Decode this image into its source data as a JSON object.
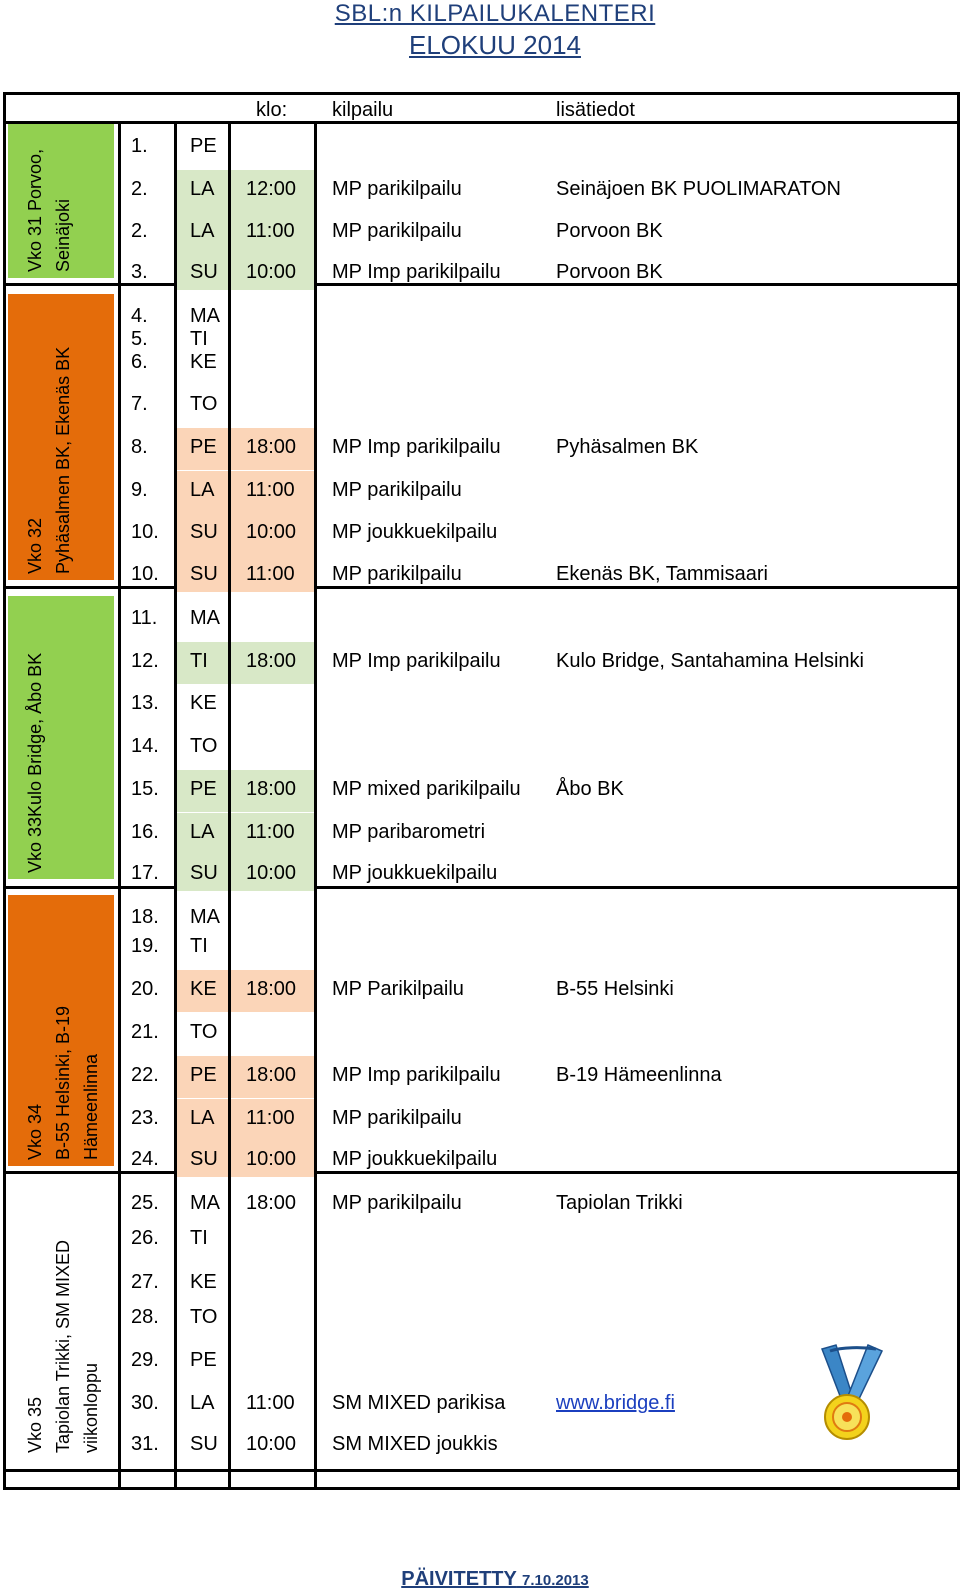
{
  "title": {
    "line1": "SBL:n KILPAILUKALENTERI",
    "line2": "ELOKUU 2014"
  },
  "table_header": {
    "time": "klo:",
    "event": "kilpailu",
    "info": "lisätiedot"
  },
  "weeks": [
    {
      "lines": [
        "Vko 31 Porvoo,",
        "Seinäjoki"
      ],
      "color": "#92d050"
    },
    {
      "lines": [
        "Vko 32",
        "Pyhäsalmen BK, Ekenäs BK"
      ],
      "color": "#e46c0a"
    },
    {
      "lines": [
        "Vko 33Kulo Bridge, Åbo BK"
      ],
      "color": "#92d050"
    },
    {
      "lines": [
        "Vko 34",
        "B-55 Helsinki, B-19",
        "Hämeenlinna"
      ],
      "color": "#e46c0a"
    },
    {
      "lines": [
        "Vko 35",
        "Tapiolan Trikki, SM MIXED",
        "viikonloppu"
      ],
      "color": "#ffffff"
    }
  ],
  "rows": [
    {
      "date": "1.",
      "day": "PE",
      "time": "",
      "event": "",
      "info": ""
    },
    {
      "date": "2.",
      "day": "LA",
      "time": "12:00",
      "event": "MP parikilpailu",
      "info": "Seinäjoen BK PUOLIMARATON"
    },
    {
      "date": "2.",
      "day": "LA",
      "time": "11:00",
      "event": "MP parikilpailu",
      "info": "Porvoon BK"
    },
    {
      "date": "3.",
      "day": "SU",
      "time": "10:00",
      "event": "MP Imp parikilpailu",
      "info": "Porvoon BK"
    },
    {
      "date": "4.",
      "day": "MA",
      "time": "",
      "event": "",
      "info": ""
    },
    {
      "date": "5.",
      "day": "TI",
      "time": "",
      "event": "",
      "info": ""
    },
    {
      "date": "6.",
      "day": "KE",
      "time": "",
      "event": "",
      "info": ""
    },
    {
      "date": "7.",
      "day": "TO",
      "time": "",
      "event": "",
      "info": ""
    },
    {
      "date": "8.",
      "day": "PE",
      "time": "18:00",
      "event": "MP Imp parikilpailu",
      "info": "Pyhäsalmen BK"
    },
    {
      "date": "9.",
      "day": "LA",
      "time": "11:00",
      "event": "MP parikilpailu",
      "info": ""
    },
    {
      "date": "10.",
      "day": "SU",
      "time": "10:00",
      "event": "MP joukkuekilpailu",
      "info": ""
    },
    {
      "date": "10.",
      "day": "SU",
      "time": "11:00",
      "event": "MP parikilpailu",
      "info": "Ekenäs BK, Tammisaari"
    },
    {
      "date": "11.",
      "day": "MA",
      "time": "",
      "event": "",
      "info": ""
    },
    {
      "date": "12.",
      "day": "TI",
      "time": "18:00",
      "event": "MP Imp parikilpailu",
      "info": "Kulo Bridge, Santahamina Helsinki"
    },
    {
      "date": "13.",
      "day": "KE",
      "time": "",
      "event": "",
      "info": ""
    },
    {
      "date": "14.",
      "day": "TO",
      "time": "",
      "event": "",
      "info": ""
    },
    {
      "date": "15.",
      "day": "PE",
      "time": "18:00",
      "event": "MP mixed parikilpailu",
      "info": "Åbo BK"
    },
    {
      "date": "16.",
      "day": "LA",
      "time": "11:00",
      "event": "MP paribarometri",
      "info": ""
    },
    {
      "date": "17.",
      "day": "SU",
      "time": "10:00",
      "event": "MP joukkuekilpailu",
      "info": ""
    },
    {
      "date": "18.",
      "day": "MA",
      "time": "",
      "event": "",
      "info": ""
    },
    {
      "date": "19.",
      "day": "TI",
      "time": "",
      "event": "",
      "info": ""
    },
    {
      "date": "20.",
      "day": "KE",
      "time": "18:00",
      "event": "MP Parikilpailu",
      "info": "B-55 Helsinki"
    },
    {
      "date": "21.",
      "day": "TO",
      "time": "",
      "event": "",
      "info": ""
    },
    {
      "date": "22.",
      "day": "PE",
      "time": "18:00",
      "event": "MP Imp parikilpailu",
      "info": "B-19 Hämeenlinna"
    },
    {
      "date": "23.",
      "day": "LA",
      "time": "11:00",
      "event": "MP parikilpailu",
      "info": ""
    },
    {
      "date": "24.",
      "day": "SU",
      "time": "10:00",
      "event": "MP joukkuekilpailu",
      "info": ""
    },
    {
      "date": "25.",
      "day": "MA",
      "time": "18:00",
      "event": "MP parikilpailu",
      "info": "Tapiolan Trikki"
    },
    {
      "date": "26.",
      "day": "TI",
      "time": "",
      "event": "",
      "info": ""
    },
    {
      "date": "27.",
      "day": "KE",
      "time": "",
      "event": "",
      "info": ""
    },
    {
      "date": "28.",
      "day": "TO",
      "time": "",
      "event": "",
      "info": ""
    },
    {
      "date": "29.",
      "day": "PE",
      "time": "",
      "event": "",
      "info": ""
    },
    {
      "date": "30.",
      "day": "LA",
      "time": "11:00",
      "event": "SM MIXED parikisa",
      "info": "www.bridge.fi",
      "info_is_link": true
    },
    {
      "date": "31.",
      "day": "SU",
      "time": "10:00",
      "event": "SM MIXED joukkis",
      "info": ""
    }
  ],
  "colors": {
    "green_light": "#d8e8c7",
    "orange_light": "#fbd5b8",
    "title_blue": "#1f3f7a",
    "link_blue": "#1b3fbf"
  },
  "medal_icon": "medal-icon",
  "footer": {
    "label": "PÄIVITETTY",
    "date": "7.10.2013"
  }
}
